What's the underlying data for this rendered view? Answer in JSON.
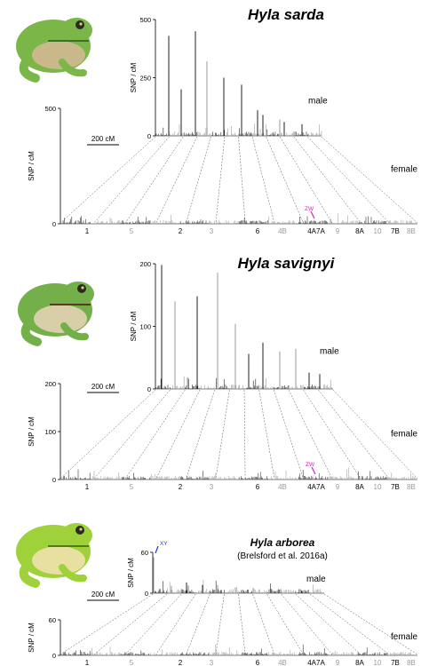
{
  "chromosome_labels": [
    {
      "text": "1",
      "muted": false
    },
    {
      "text": "5",
      "muted": true
    },
    {
      "text": "2",
      "muted": false
    },
    {
      "text": "3",
      "muted": true
    },
    {
      "text": "6",
      "muted": false
    },
    {
      "text": "4B",
      "muted": true
    },
    {
      "text": "4A7A",
      "muted": false
    },
    {
      "text": "9",
      "muted": true
    },
    {
      "text": "8A",
      "muted": false
    },
    {
      "text": "10",
      "muted": true
    },
    {
      "text": "7B",
      "muted": false
    },
    {
      "text": "8B",
      "muted": true
    }
  ],
  "panels": [
    {
      "title": "Hyla sarda",
      "citation": "",
      "y_label": "SNP / cM",
      "male_label": "male",
      "female_label": "female",
      "scale_label": "200 cM",
      "male_ticks": [
        "0",
        "250",
        "500"
      ],
      "female_ticks": [
        "0",
        "500"
      ],
      "sex_marker": "ZW",
      "frog_colors": {
        "body": "#7ab648",
        "belly": "#c9b98a",
        "dark": "#3f6e2a"
      }
    },
    {
      "title": "Hyla savignyi",
      "citation": "",
      "y_label": "SNP / cM",
      "male_label": "male",
      "female_label": "female",
      "scale_label": "200 cM",
      "male_ticks": [
        "0",
        "100",
        "200"
      ],
      "female_ticks": [
        "0",
        "100",
        "200"
      ],
      "sex_marker": "ZW",
      "frog_colors": {
        "body": "#74b04a",
        "belly": "#d8cfa8",
        "dark": "#5b3a22"
      }
    },
    {
      "title": "Hyla arborea",
      "citation": "(Brelsford et al. 2016a)",
      "y_label": "SNP / cM",
      "male_label": "male",
      "female_label": "female",
      "scale_label": "200 cM",
      "male_ticks": [
        "0",
        "60"
      ],
      "female_ticks": [
        "0",
        "60"
      ],
      "sex_marker": "XY",
      "frog_colors": {
        "body": "#9fd23a",
        "belly": "#e8e0a0",
        "dark": "#4f7d1a"
      }
    }
  ],
  "colors": {
    "marker_zw": "#d61fb6",
    "marker_xy": "#1f3fd6",
    "dark": "#222222",
    "muted": "#9a9a9a"
  }
}
